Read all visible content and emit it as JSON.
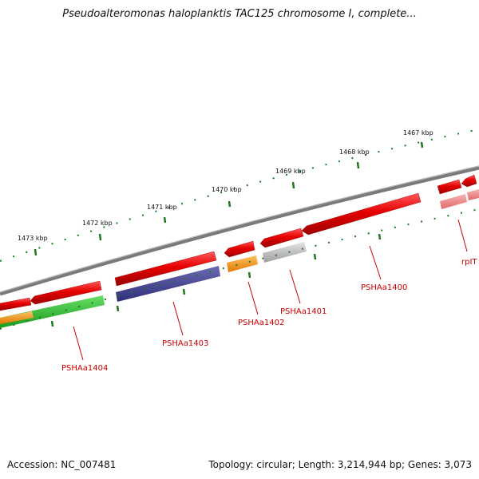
{
  "title": "Pseudoalteromonas haloplanktis TAC125 chromosome I, complete...",
  "footer": {
    "accession": "Accession: NC_007481",
    "summary": "Topology: circular; Length: 3,214,944 bp; Genes: 3,073"
  },
  "colors": {
    "backbone": "#8a8a8a",
    "ticks": "#1e7a1e",
    "forward_gene": "#e60000",
    "label": "#cc0000"
  },
  "scale_labels": [
    "1467 kbp",
    "1468 kbp",
    "1469 kbp",
    "1470 kbp",
    "1471 kbp",
    "1472 kbp",
    "1473 kbp"
  ],
  "gene_labels": [
    "rpIT",
    "PSHAa1400",
    "PSHAa1401",
    "PSHAa1402",
    "PSHAa1403",
    "PSHAa1404"
  ]
}
